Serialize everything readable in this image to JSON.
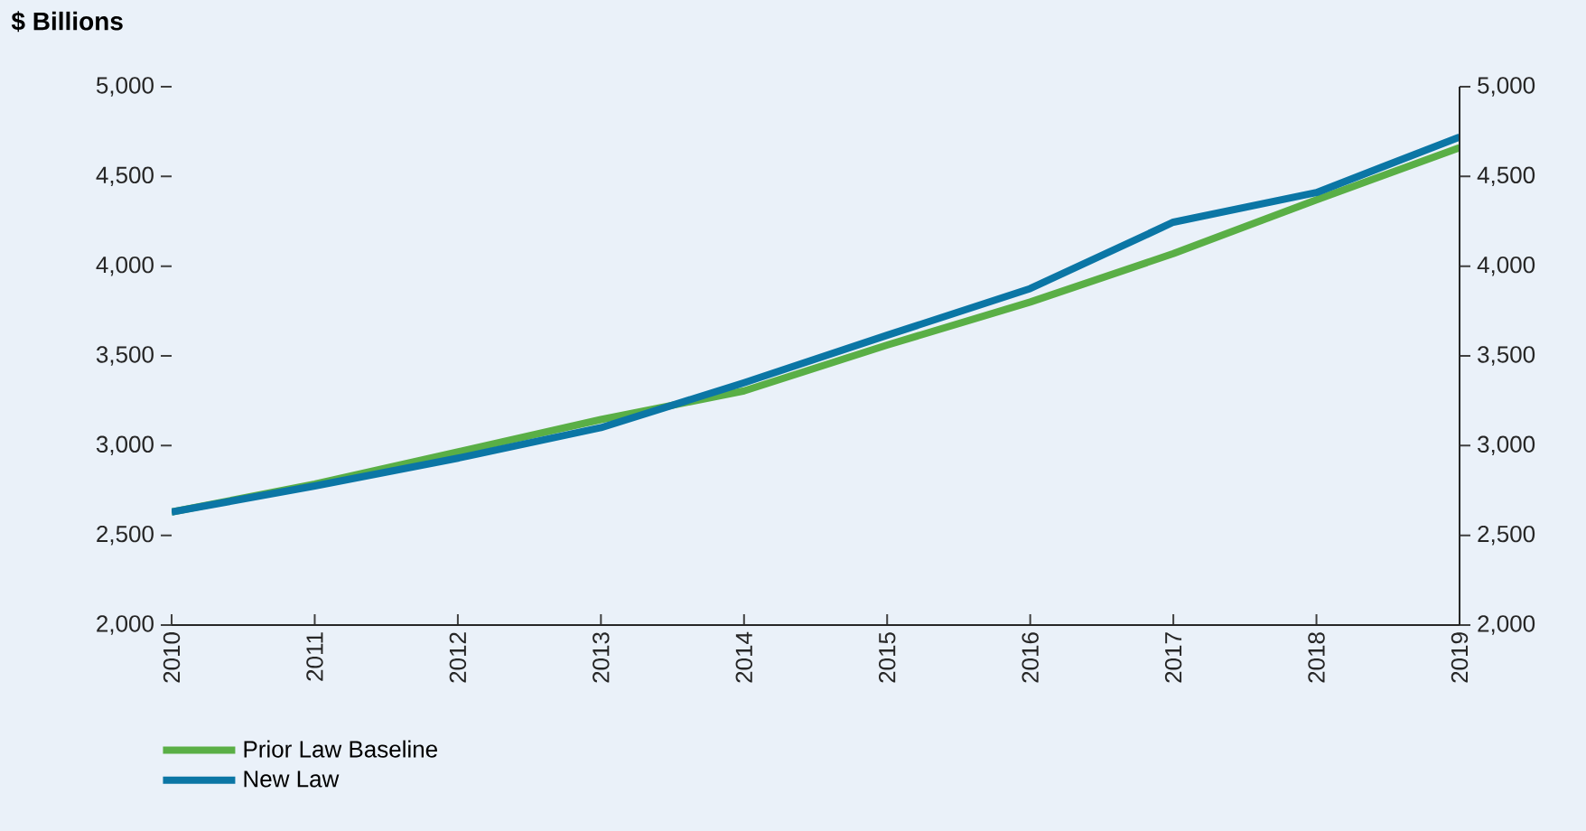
{
  "chart_data": {
    "type": "line",
    "ylabel": "$ Billions",
    "categories": [
      "2010",
      "2011",
      "2012",
      "2013",
      "2014",
      "2015",
      "2016",
      "2017",
      "2018",
      "2019"
    ],
    "series": [
      {
        "name": "Prior Law Baseline",
        "color": "#5aaf46",
        "values": [
          2630,
          2785,
          2965,
          3145,
          3305,
          3560,
          3800,
          4070,
          4370,
          4660
        ]
      },
      {
        "name": "New Law",
        "color": "#0b76a5",
        "values": [
          2630,
          2775,
          2930,
          3100,
          3350,
          3615,
          3875,
          4245,
          4410,
          4720
        ]
      }
    ],
    "ylim": [
      2000,
      5000
    ],
    "yticks": [
      {
        "value": 2000,
        "label": "2,000"
      },
      {
        "value": 2500,
        "label": "2,500"
      },
      {
        "value": 3000,
        "label": "3,000"
      },
      {
        "value": 3500,
        "label": "3,500"
      },
      {
        "value": 4000,
        "label": "4,000"
      },
      {
        "value": 4500,
        "label": "4,500"
      },
      {
        "value": 5000,
        "label": "5,000"
      }
    ],
    "y2lim": [
      2000,
      5000
    ],
    "y2ticks": [
      {
        "value": 2000,
        "label": "2,000"
      },
      {
        "value": 2500,
        "label": "2,500"
      },
      {
        "value": 3000,
        "label": "3,000"
      },
      {
        "value": 3500,
        "label": "3,500"
      },
      {
        "value": 4000,
        "label": "4,000"
      },
      {
        "value": 4500,
        "label": "4,500"
      },
      {
        "value": 5000,
        "label": "5,000"
      }
    ],
    "legend": "bottom left",
    "grid": false,
    "marker": "none",
    "line_style": "solid"
  }
}
